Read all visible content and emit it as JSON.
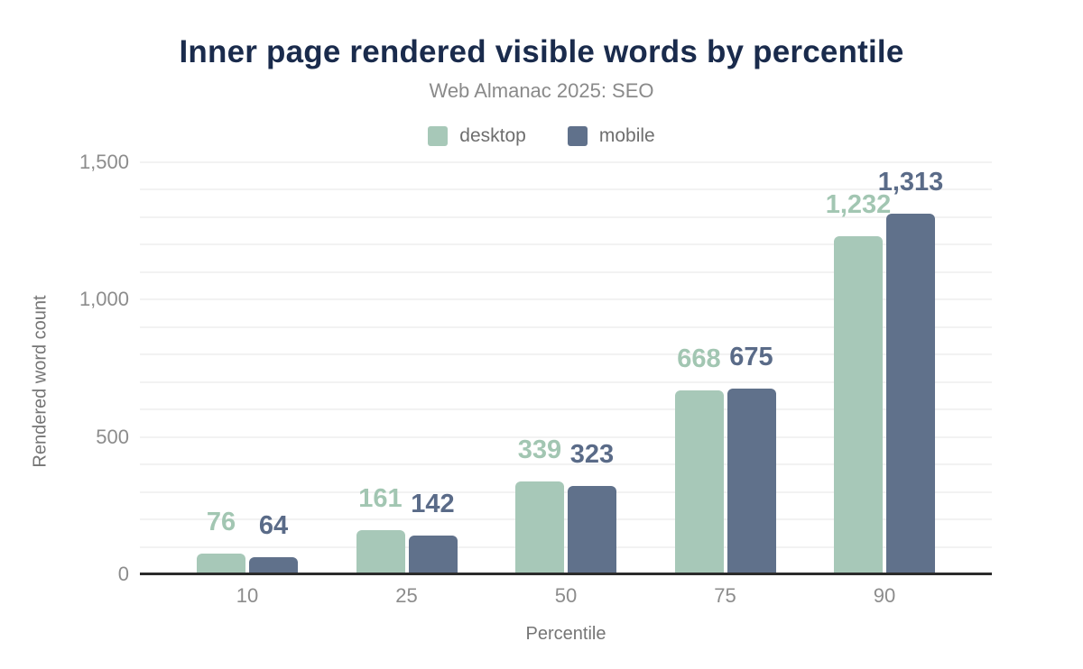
{
  "title": "Inner page rendered visible words by percentile",
  "subtitle": "Web Almanac 2025: SEO",
  "colors": {
    "title": "#1a2b4c",
    "subtitle": "#8a8a8a",
    "axis_text": "#8c8c8c",
    "axis_title": "#757575",
    "gridline": "#f2f2f2",
    "baseline": "#2b2b2b",
    "desktop": "#a7c8b8",
    "mobile": "#60718b"
  },
  "legend": [
    {
      "name": "desktop",
      "label": "desktop",
      "color": "#a7c8b8"
    },
    {
      "name": "mobile",
      "label": "mobile",
      "color": "#60718b"
    }
  ],
  "chart_data": {
    "type": "bar",
    "title": "Inner page rendered visible words by percentile",
    "subtitle": "Web Almanac 2025: SEO",
    "categories": [
      "10",
      "25",
      "50",
      "75",
      "90"
    ],
    "series": [
      {
        "name": "desktop",
        "color": "#a7c8b8",
        "label_color": "#a2c6b2",
        "values": [
          76,
          161,
          339,
          668,
          1232
        ],
        "value_labels": [
          "76",
          "161",
          "339",
          "668",
          "1,232"
        ]
      },
      {
        "name": "mobile",
        "color": "#60718b",
        "label_color": "#5a6b88",
        "values": [
          64,
          142,
          323,
          675,
          1313
        ],
        "value_labels": [
          "64",
          "142",
          "323",
          "675",
          "1,313"
        ]
      }
    ],
    "xlabel": "Percentile",
    "ylabel": "Rendered word count",
    "ylim": [
      0,
      1500
    ],
    "yticks": [
      {
        "value": 0,
        "label": "0"
      },
      {
        "value": 500,
        "label": "500"
      },
      {
        "value": 1000,
        "label": "1,000"
      },
      {
        "value": 1500,
        "label": "1,500"
      }
    ],
    "grid_interval": 100,
    "grid": true,
    "legend_position": "top-center"
  }
}
